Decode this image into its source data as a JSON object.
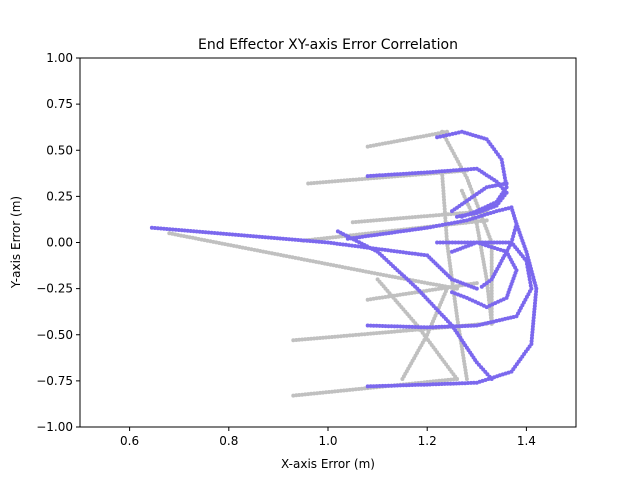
{
  "chart_data": {
    "type": "scatter",
    "title": "End Effector XY-axis Error Correlation",
    "xlabel": "X-axis Error (m)",
    "ylabel": "Y-axis Error (m)",
    "xlim": [
      0.5,
      1.5
    ],
    "ylim": [
      -1.0,
      1.0
    ],
    "xticks": [
      0.6,
      0.8,
      1.0,
      1.2,
      1.4
    ],
    "xtick_labels": [
      "0.6",
      "0.8",
      "1.0",
      "1.2",
      "1.4"
    ],
    "yticks": [
      -1.0,
      -0.75,
      -0.5,
      -0.25,
      0.0,
      0.25,
      0.5,
      0.75,
      1.0
    ],
    "ytick_labels": [
      "−1.00",
      "−0.75",
      "−0.50",
      "−0.25",
      "0.00",
      "0.25",
      "0.50",
      "0.75",
      "1.00"
    ],
    "grid": false,
    "legend": false,
    "series": [
      {
        "color": "#c0c0c0",
        "polylines": [
          [
            [
              1.08,
              0.52
            ],
            [
              1.24,
              0.6
            ]
          ],
          [
            [
              0.96,
              0.32
            ],
            [
              1.28,
              0.39
            ]
          ],
          [
            [
              1.05,
              0.11
            ],
            [
              1.32,
              0.17
            ]
          ],
          [
            [
              0.95,
              0.01
            ],
            [
              1.32,
              0.12
            ]
          ],
          [
            [
              0.68,
              0.05
            ],
            [
              1.1,
              -0.17
            ],
            [
              1.26,
              -0.25
            ]
          ],
          [
            [
              1.08,
              -0.31
            ],
            [
              1.3,
              -0.22
            ]
          ],
          [
            [
              0.93,
              -0.53
            ],
            [
              1.32,
              -0.44
            ]
          ],
          [
            [
              0.93,
              -0.83
            ],
            [
              1.26,
              -0.74
            ]
          ],
          [
            [
              1.23,
              0.6
            ],
            [
              1.28,
              0.35
            ],
            [
              1.33,
              0.0
            ],
            [
              1.33,
              -0.44
            ]
          ],
          [
            [
              1.23,
              0.38
            ],
            [
              1.24,
              0.0
            ],
            [
              1.26,
              -0.4
            ],
            [
              1.28,
              -0.74
            ]
          ],
          [
            [
              1.27,
              0.28
            ],
            [
              1.3,
              0.1
            ],
            [
              1.32,
              -0.2
            ],
            [
              1.33,
              -0.44
            ]
          ],
          [
            [
              1.1,
              -0.2
            ],
            [
              1.18,
              -0.45
            ],
            [
              1.26,
              -0.74
            ]
          ],
          [
            [
              1.24,
              -0.25
            ],
            [
              1.2,
              -0.5
            ],
            [
              1.15,
              -0.74
            ]
          ]
        ]
      },
      {
        "color": "#7b68ee",
        "polylines": [
          [
            [
              0.645,
              0.08
            ],
            [
              1.0,
              0.0
            ],
            [
              1.2,
              -0.07
            ],
            [
              1.25,
              -0.2
            ],
            [
              1.3,
              -0.25
            ]
          ],
          [
            [
              1.08,
              0.36
            ],
            [
              1.2,
              0.38
            ],
            [
              1.3,
              0.4
            ],
            [
              1.34,
              0.33
            ],
            [
              1.36,
              0.27
            ],
            [
              1.34,
              0.2
            ],
            [
              1.3,
              0.16
            ],
            [
              1.26,
              0.14
            ]
          ],
          [
            [
              1.22,
              0.57
            ],
            [
              1.27,
              0.6
            ],
            [
              1.32,
              0.56
            ],
            [
              1.35,
              0.45
            ],
            [
              1.36,
              0.3
            ],
            [
              1.34,
              0.22
            ],
            [
              1.3,
              0.17
            ],
            [
              1.27,
              0.14
            ]
          ],
          [
            [
              1.25,
              0.17
            ],
            [
              1.32,
              0.3
            ],
            [
              1.36,
              0.32
            ]
          ],
          [
            [
              1.04,
              0.02
            ],
            [
              1.2,
              0.08
            ],
            [
              1.28,
              0.12
            ],
            [
              1.34,
              0.17
            ],
            [
              1.37,
              0.19
            ],
            [
              1.38,
              0.1
            ],
            [
              1.37,
              0.0
            ],
            [
              1.35,
              -0.1
            ],
            [
              1.33,
              -0.2
            ],
            [
              1.31,
              -0.24
            ]
          ],
          [
            [
              1.08,
              -0.45
            ],
            [
              1.2,
              -0.46
            ],
            [
              1.3,
              -0.45
            ],
            [
              1.38,
              -0.4
            ],
            [
              1.41,
              -0.25
            ],
            [
              1.4,
              -0.1
            ],
            [
              1.37,
              0.0
            ],
            [
              1.3,
              0.0
            ],
            [
              1.25,
              -0.05
            ]
          ],
          [
            [
              1.22,
              0.0
            ],
            [
              1.3,
              0.0
            ],
            [
              1.36,
              -0.05
            ],
            [
              1.38,
              -0.15
            ],
            [
              1.36,
              -0.3
            ],
            [
              1.32,
              -0.35
            ],
            [
              1.28,
              -0.3
            ],
            [
              1.25,
              -0.27
            ]
          ],
          [
            [
              1.08,
              -0.78
            ],
            [
              1.2,
              -0.77
            ],
            [
              1.3,
              -0.76
            ],
            [
              1.37,
              -0.7
            ],
            [
              1.41,
              -0.55
            ],
            [
              1.42,
              -0.25
            ],
            [
              1.4,
              -0.05
            ],
            [
              1.38,
              0.1
            ]
          ],
          [
            [
              1.02,
              0.06
            ],
            [
              1.1,
              -0.05
            ],
            [
              1.18,
              -0.25
            ],
            [
              1.25,
              -0.45
            ],
            [
              1.3,
              -0.65
            ],
            [
              1.33,
              -0.74
            ]
          ]
        ]
      }
    ]
  }
}
